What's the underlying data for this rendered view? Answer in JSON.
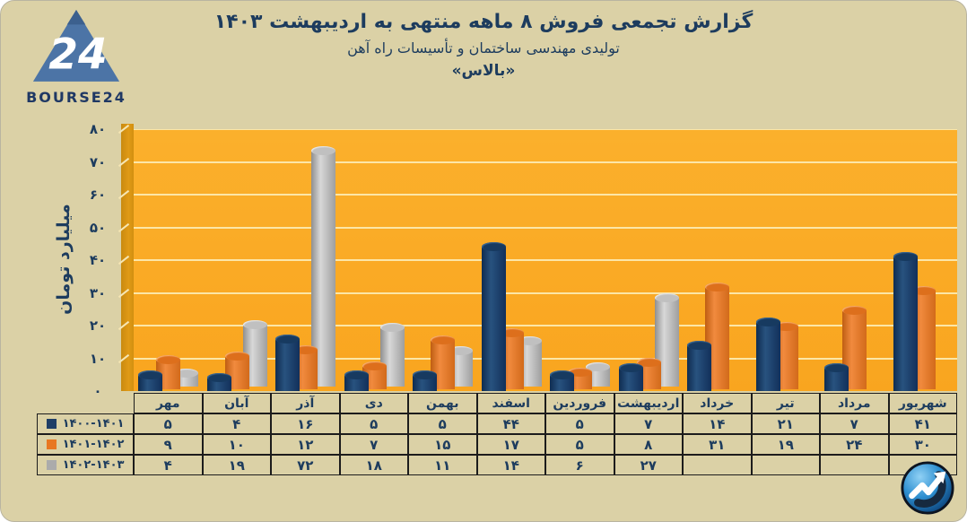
{
  "logo": {
    "brand": "BOURSE24",
    "number": "24",
    "triangle_color": "#4c74a6",
    "text_color": "#1f3864"
  },
  "header": {
    "title": "گزارش تجمعی فروش ۸ ماهه منتهی به اردیبهشت ۱۴۰۳",
    "subtitle": "تولیدی مهندسی ساختمان و تأسیسات راه آهن",
    "company": "«بالاس»"
  },
  "chart_data": {
    "type": "bar",
    "style": "3d-cylinder",
    "title": "گزارش تجمعی فروش ۸ ماهه منتهی به اردیبهشت ۱۴۰۳",
    "ylabel": "میلیارد تومان",
    "ylim": [
      0,
      80
    ],
    "ytick_step": 10,
    "grid": true,
    "plot_bg": "#f9a824",
    "page_bg": "#dbd1a6",
    "legend_position": "table-left-column",
    "categories": [
      "مهر",
      "آبان",
      "آذر",
      "دی",
      "بهمن",
      "اسفند",
      "فروردین",
      "اردیبهشت",
      "خرداد",
      "تیر",
      "مرداد",
      "شهریور"
    ],
    "series": [
      {
        "name": "۱۴۰۰-۱۴۰۱",
        "color": "#1f3e66",
        "values": [
          5,
          4,
          16,
          5,
          5,
          44,
          5,
          7,
          14,
          21,
          7,
          41
        ]
      },
      {
        "name": "۱۴۰۱-۱۴۰۲",
        "color": "#e87722",
        "values": [
          9,
          10,
          12,
          7,
          15,
          17,
          5,
          8,
          31,
          19,
          24,
          30
        ]
      },
      {
        "name": "۱۴۰۲-۱۴۰۳",
        "color": "#ababab",
        "values": [
          4,
          19,
          72,
          18,
          11,
          14,
          6,
          27,
          null,
          null,
          null,
          null
        ]
      }
    ]
  },
  "badge": {
    "meaning": "trending-up-market-logo",
    "circle_color": "#2e8fd0",
    "arrow_color": "#ffffff"
  }
}
